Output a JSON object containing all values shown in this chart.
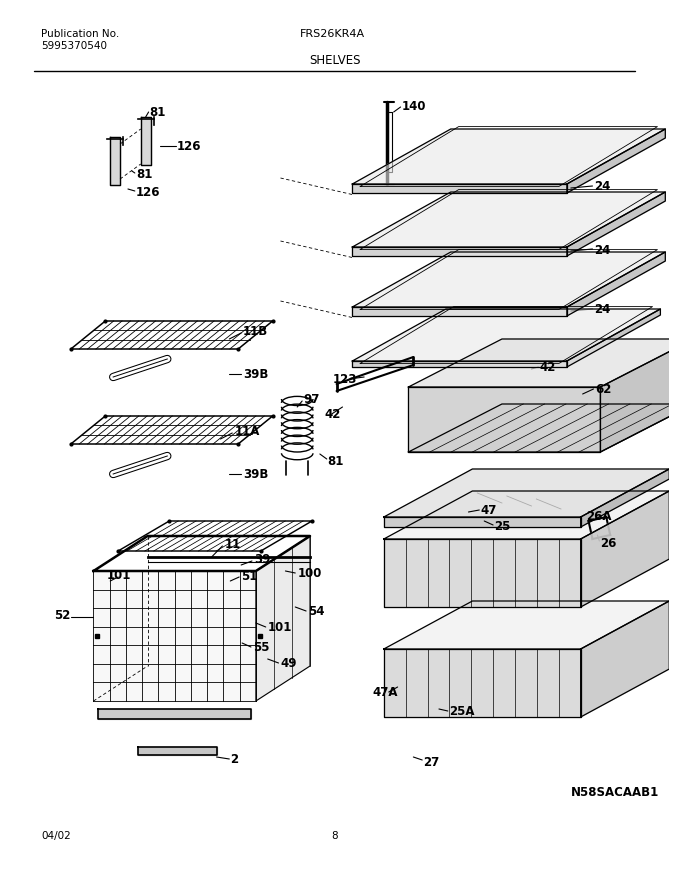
{
  "title": "FRS26KR4A",
  "subtitle": "SHELVES",
  "pub_no_label": "Publication No.",
  "pub_no": "5995370540",
  "date": "04/02",
  "page": "8",
  "model_no": "N58SACAAB1",
  "bg_color": "#ffffff",
  "line_color": "#000000",
  "font_size_labels": 8.5,
  "font_size_header": 7.5,
  "font_size_title": 8.0,
  "font_size_subtitle": 8.5
}
